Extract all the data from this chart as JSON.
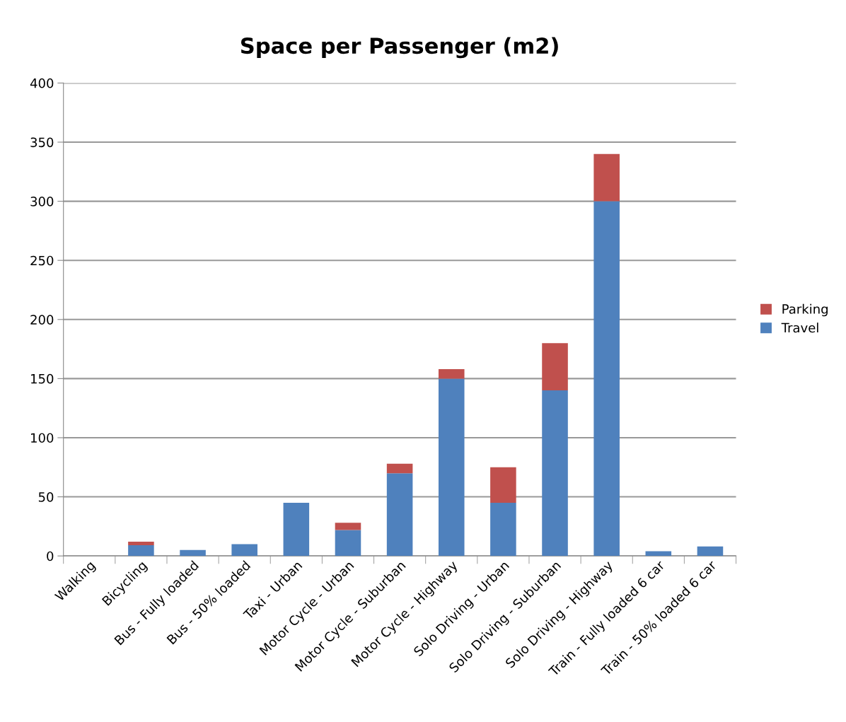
{
  "chart_data": {
    "type": "bar",
    "stacked": true,
    "title": "Space per Passenger (m2)",
    "categories": [
      "Walking",
      "Bicycling",
      "Bus - Fully loaded",
      "Bus - 50% loaded",
      "Taxi - Urban",
      "Motor Cycle - Urban",
      "Motor Cycle - Suburban",
      "Motor Cycle - Highway",
      "Solo Driving - Urban",
      "Solo Driving - Suburban",
      "Solo Driving - Highway",
      "Train - Fully loaded 6 car",
      "Train - 50% loaded 6 car"
    ],
    "series": [
      {
        "name": "Travel",
        "color": "#4f81bd",
        "values": [
          0,
          9,
          5,
          10,
          45,
          22,
          70,
          150,
          45,
          140,
          300,
          4,
          8
        ]
      },
      {
        "name": "Parking",
        "color": "#c0504d",
        "values": [
          0,
          3,
          0,
          0,
          0,
          6,
          8,
          8,
          30,
          40,
          40,
          0,
          0
        ]
      }
    ],
    "ylim": [
      0,
      400
    ],
    "yticks": [
      0,
      50,
      100,
      150,
      200,
      250,
      300,
      350,
      400
    ],
    "grid": "y",
    "legend": "right"
  }
}
